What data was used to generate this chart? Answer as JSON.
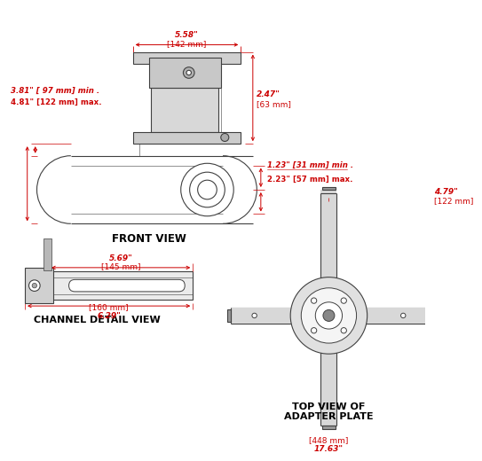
{
  "background_color": "#ffffff",
  "line_color": "#404040",
  "dim_color": "#cc0000",
  "text_color": "#000000",
  "front_view_label": "FRONT VIEW",
  "channel_label": "CHANNEL DETAIL VIEW",
  "top_view_label1": "TOP VIEW OF",
  "top_view_label2": "ADAPTER PLATE",
  "dim_558": "5.58\"",
  "dim_142": "[142 mm]",
  "dim_247": "2.47\"",
  "dim_63": "[63 mm]",
  "dim_381": "3.81\" [ 97 mm] min .",
  "dim_481": "4.81\" [122 mm] max.",
  "dim_123": "1.23\" [31 mm] min .",
  "dim_223": "2.23\" [57 mm] max.",
  "dim_569": "5.69\"",
  "dim_145": "[145 mm]",
  "dim_629": "6.29\"",
  "dim_160": "[160 mm]",
  "dim_479": "4.79\"",
  "dim_122": "[122 mm]",
  "dim_1763": "17.63\"",
  "dim_448": "[448 mm]"
}
